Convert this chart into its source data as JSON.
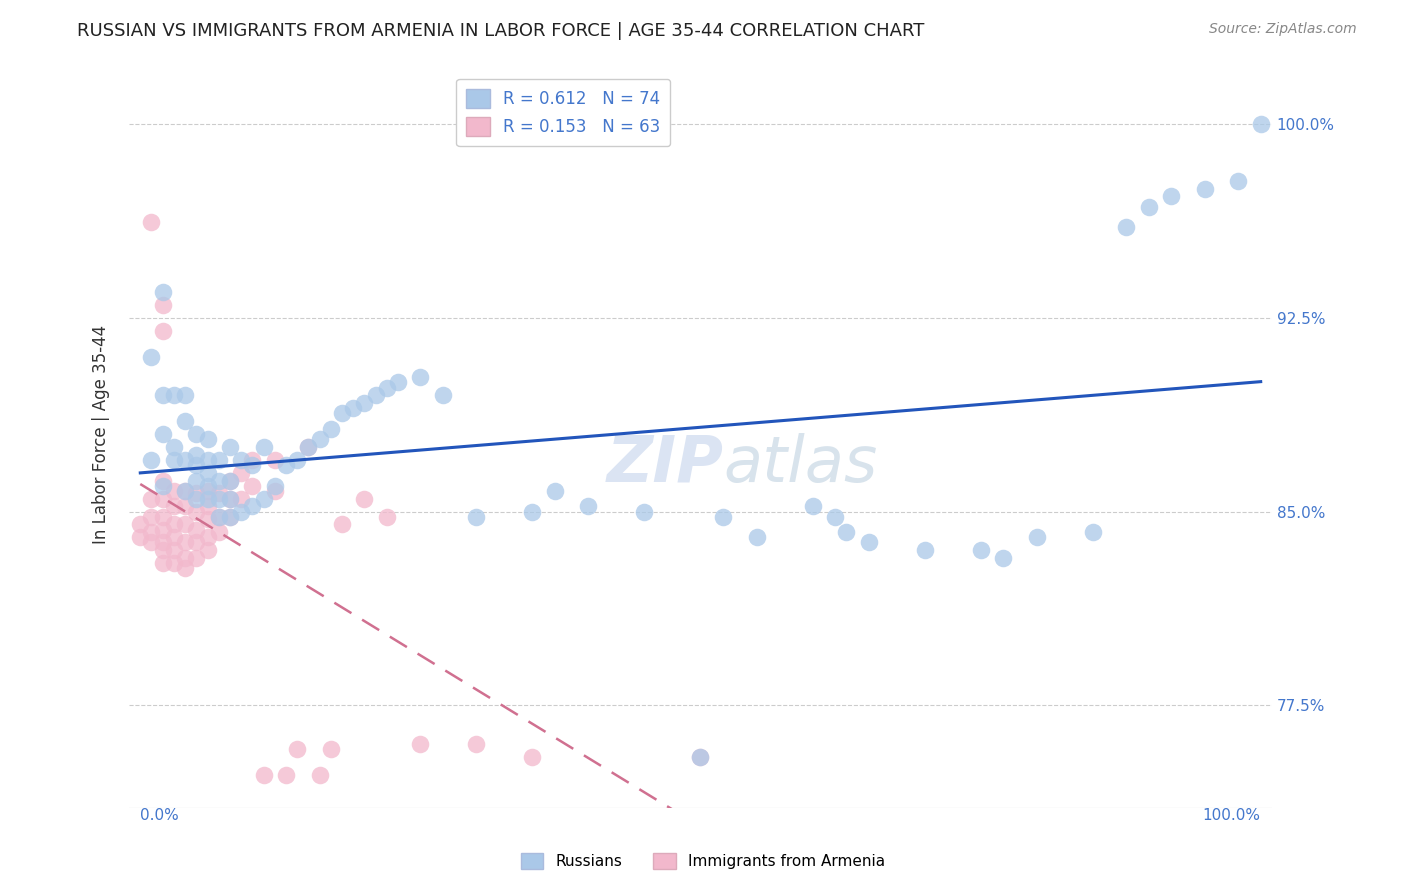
{
  "title": "RUSSIAN VS IMMIGRANTS FROM ARMENIA IN LABOR FORCE | AGE 35-44 CORRELATION CHART",
  "source": "Source: ZipAtlas.com",
  "ylabel": "In Labor Force | Age 35-44",
  "ytick_labels": [
    "77.5%",
    "85.0%",
    "92.5%",
    "100.0%"
  ],
  "ytick_values": [
    0.775,
    0.85,
    0.925,
    1.0
  ],
  "xlim": [
    -0.01,
    1.01
  ],
  "ylim": [
    0.735,
    1.025
  ],
  "legend_r1": "R = 0.612",
  "legend_n1": "N = 74",
  "legend_r2": "R = 0.153",
  "legend_n2": "N = 63",
  "color_russian": "#aac8e8",
  "color_armenia": "#f2b8cc",
  "color_trendline_russian": "#2255bb",
  "color_trendline_armenia": "#d07090",
  "watermark_zip": "ZIP",
  "watermark_atlas": "atlas",
  "russian_x": [
    0.01,
    0.01,
    0.02,
    0.02,
    0.02,
    0.02,
    0.03,
    0.03,
    0.03,
    0.04,
    0.04,
    0.04,
    0.04,
    0.05,
    0.05,
    0.05,
    0.05,
    0.05,
    0.06,
    0.06,
    0.06,
    0.06,
    0.06,
    0.07,
    0.07,
    0.07,
    0.07,
    0.08,
    0.08,
    0.08,
    0.08,
    0.09,
    0.09,
    0.1,
    0.1,
    0.11,
    0.11,
    0.12,
    0.13,
    0.14,
    0.15,
    0.16,
    0.17,
    0.18,
    0.19,
    0.2,
    0.21,
    0.22,
    0.23,
    0.25,
    0.27,
    0.3,
    0.35,
    0.37,
    0.4,
    0.45,
    0.5,
    0.52,
    0.55,
    0.6,
    0.62,
    0.63,
    0.65,
    0.7,
    0.75,
    0.77,
    0.8,
    0.85,
    0.88,
    0.9,
    0.92,
    0.95,
    0.98,
    1.0
  ],
  "russian_y": [
    0.87,
    0.91,
    0.88,
    0.895,
    0.86,
    0.935,
    0.87,
    0.895,
    0.875,
    0.858,
    0.87,
    0.885,
    0.895,
    0.855,
    0.862,
    0.868,
    0.872,
    0.88,
    0.855,
    0.86,
    0.865,
    0.87,
    0.878,
    0.848,
    0.855,
    0.862,
    0.87,
    0.848,
    0.855,
    0.862,
    0.875,
    0.85,
    0.87,
    0.852,
    0.868,
    0.855,
    0.875,
    0.86,
    0.868,
    0.87,
    0.875,
    0.878,
    0.882,
    0.888,
    0.89,
    0.892,
    0.895,
    0.898,
    0.9,
    0.902,
    0.895,
    0.848,
    0.85,
    0.858,
    0.852,
    0.85,
    0.755,
    0.848,
    0.84,
    0.852,
    0.848,
    0.842,
    0.838,
    0.835,
    0.835,
    0.832,
    0.84,
    0.842,
    0.96,
    0.968,
    0.972,
    0.975,
    0.978,
    1.0
  ],
  "armenia_x": [
    0.0,
    0.0,
    0.01,
    0.01,
    0.01,
    0.01,
    0.01,
    0.02,
    0.02,
    0.02,
    0.02,
    0.02,
    0.02,
    0.02,
    0.02,
    0.02,
    0.03,
    0.03,
    0.03,
    0.03,
    0.03,
    0.03,
    0.04,
    0.04,
    0.04,
    0.04,
    0.04,
    0.04,
    0.05,
    0.05,
    0.05,
    0.05,
    0.05,
    0.06,
    0.06,
    0.06,
    0.06,
    0.06,
    0.07,
    0.07,
    0.07,
    0.08,
    0.08,
    0.08,
    0.09,
    0.09,
    0.1,
    0.1,
    0.11,
    0.12,
    0.12,
    0.13,
    0.14,
    0.15,
    0.16,
    0.17,
    0.18,
    0.2,
    0.22,
    0.25,
    0.3,
    0.35,
    0.5
  ],
  "armenia_y": [
    0.84,
    0.845,
    0.838,
    0.842,
    0.848,
    0.855,
    0.962,
    0.83,
    0.835,
    0.838,
    0.843,
    0.848,
    0.855,
    0.862,
    0.92,
    0.93,
    0.83,
    0.835,
    0.84,
    0.845,
    0.852,
    0.858,
    0.828,
    0.832,
    0.838,
    0.845,
    0.852,
    0.858,
    0.832,
    0.838,
    0.843,
    0.85,
    0.857,
    0.835,
    0.84,
    0.847,
    0.852,
    0.858,
    0.842,
    0.848,
    0.857,
    0.848,
    0.855,
    0.862,
    0.855,
    0.865,
    0.86,
    0.87,
    0.748,
    0.858,
    0.87,
    0.748,
    0.758,
    0.875,
    0.748,
    0.758,
    0.845,
    0.855,
    0.848,
    0.76,
    0.76,
    0.755,
    0.755
  ]
}
